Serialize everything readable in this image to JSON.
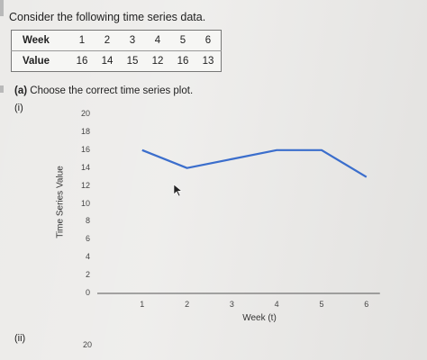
{
  "question": {
    "intro": "Consider the following time series data.",
    "part_a_label": "(a)",
    "part_a_text": "Choose the correct time series plot.",
    "option_i": "(i)",
    "option_ii": "(ii)"
  },
  "table": {
    "header_week": "Week",
    "header_value": "Value",
    "weeks": [
      "1",
      "2",
      "3",
      "4",
      "5",
      "6"
    ],
    "values": [
      "16",
      "14",
      "15",
      "12",
      "16",
      "13"
    ]
  },
  "chart_data": {
    "type": "line",
    "xlabel": "Week (t)",
    "ylabel": "Time Series Value",
    "x": [
      1,
      2,
      3,
      4,
      5,
      6
    ],
    "values": [
      16,
      14,
      15,
      16,
      16,
      13
    ],
    "xlim": [
      0,
      6.3
    ],
    "ylim": [
      0,
      20
    ],
    "xticks": [
      "1",
      "2",
      "3",
      "4",
      "5",
      "6"
    ],
    "yticks": [
      "0",
      "2",
      "4",
      "6",
      "8",
      "10",
      "12",
      "14",
      "16",
      "18",
      "20"
    ],
    "line_color": "#3b6ecc",
    "grid": false
  },
  "option_ii_chart": {
    "ytick_top": "20"
  }
}
